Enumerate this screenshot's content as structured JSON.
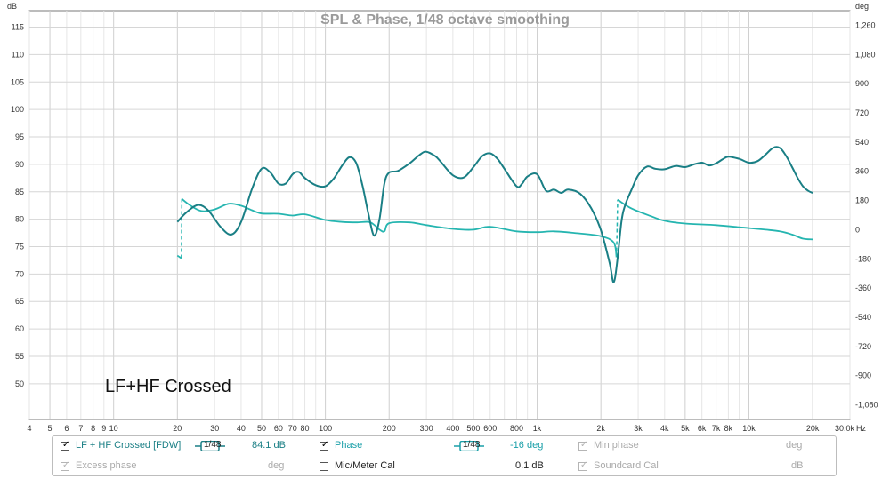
{
  "chart_data": {
    "type": "line",
    "title": "SPL & Phase, 1/48 octave smoothing",
    "annotation": "LF+HF Crossed",
    "x_unit": "Hz",
    "y_left_unit": "dB",
    "y_right_unit": "deg",
    "xlim": [
      4,
      30000
    ],
    "x_scale": "log",
    "ylim_left": [
      43.5,
      118
    ],
    "ylim_right": [
      -1170,
      1350
    ],
    "grid": true,
    "x_ticks": [
      {
        "v": 4,
        "label": "4"
      },
      {
        "v": 5,
        "label": "5"
      },
      {
        "v": 6,
        "label": "6"
      },
      {
        "v": 7,
        "label": "7"
      },
      {
        "v": 8,
        "label": "8"
      },
      {
        "v": 9,
        "label": "9"
      },
      {
        "v": 10,
        "label": "10"
      },
      {
        "v": 20,
        "label": "20"
      },
      {
        "v": 30,
        "label": "30"
      },
      {
        "v": 40,
        "label": "40"
      },
      {
        "v": 50,
        "label": "50"
      },
      {
        "v": 60,
        "label": "60"
      },
      {
        "v": 70,
        "label": "70"
      },
      {
        "v": 80,
        "label": "80"
      },
      {
        "v": 100,
        "label": "100"
      },
      {
        "v": 200,
        "label": "200"
      },
      {
        "v": 300,
        "label": "300"
      },
      {
        "v": 400,
        "label": "400"
      },
      {
        "v": 500,
        "label": "500"
      },
      {
        "v": 600,
        "label": "600"
      },
      {
        "v": 800,
        "label": "800"
      },
      {
        "v": 1000,
        "label": "1k"
      },
      {
        "v": 2000,
        "label": "2k"
      },
      {
        "v": 3000,
        "label": "3k"
      },
      {
        "v": 4000,
        "label": "4k"
      },
      {
        "v": 5000,
        "label": "5k"
      },
      {
        "v": 6000,
        "label": "6k"
      },
      {
        "v": 7000,
        "label": "7k"
      },
      {
        "v": 8000,
        "label": "8k"
      },
      {
        "v": 10000,
        "label": "10k"
      },
      {
        "v": 20000,
        "label": "20k"
      },
      {
        "v": 30000,
        "label": "30.0k"
      }
    ],
    "y_left_ticks": [
      115,
      110,
      105,
      100,
      95,
      90,
      85,
      80,
      75,
      70,
      65,
      60,
      55,
      50
    ],
    "y_right_ticks": [
      {
        "v": 1260,
        "label": "1,260"
      },
      {
        "v": 1080,
        "label": "1,080"
      },
      {
        "v": 900,
        "label": "900"
      },
      {
        "v": 720,
        "label": "720"
      },
      {
        "v": 540,
        "label": "540"
      },
      {
        "v": 360,
        "label": "360"
      },
      {
        "v": 180,
        "label": "180"
      },
      {
        "v": 0,
        "label": "0"
      },
      {
        "v": -180,
        "label": "-180"
      },
      {
        "v": -360,
        "label": "-360"
      },
      {
        "v": -540,
        "label": "-540"
      },
      {
        "v": -720,
        "label": "-720"
      },
      {
        "v": -900,
        "label": "-900"
      },
      {
        "v": -1080,
        "label": "-1,080"
      }
    ],
    "series": [
      {
        "name": "LF + HF Crossed [FDW]",
        "axis": "left",
        "color": "#1a7f85",
        "x": [
          20,
          22,
          25,
          28,
          32,
          36,
          40,
          45,
          50,
          55,
          60,
          65,
          70,
          75,
          80,
          90,
          100,
          110,
          120,
          130,
          140,
          150,
          160,
          170,
          180,
          190,
          200,
          220,
          250,
          280,
          300,
          330,
          350,
          400,
          450,
          500,
          550,
          600,
          650,
          700,
          800,
          850,
          900,
          1000,
          1100,
          1200,
          1300,
          1400,
          1600,
          1800,
          2000,
          2200,
          2300,
          2400,
          2500,
          2600,
          2800,
          3000,
          3300,
          3600,
          4000,
          4500,
          5000,
          5500,
          6000,
          6500,
          7000,
          7500,
          8000,
          9000,
          10000,
          11000,
          12000,
          13000,
          14000,
          15000,
          16000,
          17000,
          18000,
          19000,
          20000
        ],
        "y": [
          79.5,
          81.2,
          82.6,
          81.6,
          78.6,
          77.2,
          79.5,
          85.5,
          89.2,
          88.5,
          86.5,
          86.5,
          88.2,
          88.6,
          87.5,
          86.2,
          86.0,
          87.5,
          89.8,
          91.3,
          90.2,
          86.0,
          80.8,
          77.0,
          80.0,
          86.5,
          88.5,
          88.8,
          90.2,
          91.8,
          92.3,
          91.5,
          90.5,
          88.0,
          87.6,
          89.5,
          91.5,
          92.0,
          91.0,
          89.2,
          86.0,
          86.5,
          87.8,
          88.2,
          85.2,
          85.4,
          84.8,
          85.4,
          84.6,
          82.0,
          78.0,
          72.0,
          68.5,
          73.0,
          79.5,
          82.5,
          85.5,
          88.0,
          89.6,
          89.2,
          89.1,
          89.7,
          89.5,
          90.0,
          90.3,
          89.8,
          90.2,
          90.9,
          91.4,
          91.0,
          90.3,
          90.6,
          91.8,
          93.0,
          93.0,
          91.5,
          89.5,
          87.5,
          86.0,
          85.2,
          84.8
        ]
      },
      {
        "name": "Phase",
        "axis": "right",
        "color": "#25b5b0",
        "x": [
          20,
          20.9,
          21.0,
          23,
          26,
          30,
          35,
          40,
          45,
          50,
          60,
          70,
          80,
          100,
          120,
          140,
          160,
          170,
          180,
          190,
          200,
          250,
          300,
          400,
          500,
          600,
          800,
          1000,
          1200,
          1500,
          2000,
          2300,
          2370,
          2400,
          2800,
          3500,
          4000,
          5000,
          7000,
          9000,
          10000,
          12000,
          14000,
          16000,
          18000,
          20000
        ],
        "y": [
          -160,
          -176,
          190,
          150,
          115,
          125,
          160,
          148,
          120,
          100,
          98,
          87,
          95,
          60,
          48,
          45,
          48,
          30,
          0,
          -10,
          40,
          45,
          28,
          5,
          0,
          18,
          -10,
          -15,
          -10,
          -20,
          -40,
          -80,
          -170,
          185,
          130,
          80,
          55,
          38,
          28,
          15,
          10,
          0,
          -10,
          -30,
          -55,
          -60
        ]
      }
    ]
  },
  "legend": {
    "items": [
      {
        "label": "LF + HF Crossed [FDW]",
        "checked": true,
        "enabled": true,
        "color": "#1a7f85",
        "smoothing": "1/48",
        "value": "84.1 dB"
      },
      {
        "label": "Phase",
        "checked": true,
        "enabled": true,
        "color": "#1a9fa8",
        "smoothing": "1/48",
        "value": "-16 deg"
      },
      {
        "label": "Min phase",
        "checked": true,
        "enabled": false,
        "color": "#aaaaaa",
        "value": "deg"
      },
      {
        "label": "Excess phase",
        "checked": true,
        "enabled": false,
        "color": "#aaaaaa",
        "value": "deg"
      },
      {
        "label": "Mic/Meter Cal",
        "checked": false,
        "enabled": true,
        "color": "#222222",
        "value": "0.1 dB"
      },
      {
        "label": "Soundcard Cal",
        "checked": true,
        "enabled": false,
        "color": "#aaaaaa",
        "value": "dB"
      }
    ]
  }
}
